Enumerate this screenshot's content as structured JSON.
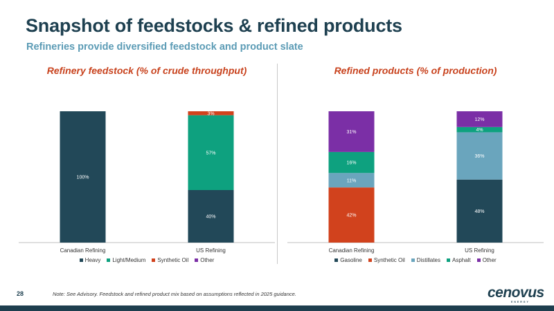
{
  "header": {
    "title": "Snapshot of feedstocks & refined products",
    "subtitle": "Refineries provide diversified feedstock and product slate"
  },
  "footer": {
    "page_number": "28",
    "note": "Note: See Advisory. Feedstock and refined product mix based on assumptions reflected in 2025 guidance.",
    "logo_text": "cenovus",
    "logo_subtext": "ENERGY"
  },
  "chart_data": [
    {
      "type": "bar",
      "stacked": true,
      "title": "Refinery feedstock (% of crude throughput)",
      "categories": [
        "Canadian Refining",
        "US Refining"
      ],
      "ylim": [
        0,
        100
      ],
      "legend_position": "bottom",
      "series": [
        {
          "name": "Heavy",
          "color": "#224858",
          "values": [
            100,
            40
          ],
          "labels": [
            "100%",
            "40%"
          ]
        },
        {
          "name": "Light/Medium",
          "color": "#0ea17f",
          "values": [
            0,
            57
          ],
          "labels": [
            "",
            "57%"
          ]
        },
        {
          "name": "Synthetic Oil",
          "color": "#d1421d",
          "values": [
            0,
            3
          ],
          "labels": [
            "",
            "3%"
          ]
        },
        {
          "name": "Other",
          "color": "#7b2fa6",
          "values": [
            0,
            0
          ],
          "labels": [
            "",
            ""
          ]
        }
      ]
    },
    {
      "type": "bar",
      "stacked": true,
      "title": "Refined products (% of production)",
      "categories": [
        "Canadian Refining",
        "US Refining"
      ],
      "ylim": [
        0,
        100
      ],
      "legend_position": "bottom",
      "series": [
        {
          "name": "Gasoline",
          "color": "#224858",
          "values": [
            0,
            48
          ],
          "labels": [
            "",
            "48%"
          ]
        },
        {
          "name": "Synthetic Oil",
          "color": "#d1421d",
          "values": [
            42,
            0
          ],
          "labels": [
            "42%",
            ""
          ]
        },
        {
          "name": "Distillates",
          "color": "#6aa5bd",
          "values": [
            11,
            36
          ],
          "labels": [
            "11%",
            "36%"
          ]
        },
        {
          "name": "Asphalt",
          "color": "#0ea17f",
          "values": [
            16,
            4
          ],
          "labels": [
            "16%",
            "4%"
          ]
        },
        {
          "name": "Other",
          "color": "#7b2fa6",
          "values": [
            31,
            12
          ],
          "labels": [
            "31%",
            "12%"
          ]
        }
      ]
    }
  ]
}
